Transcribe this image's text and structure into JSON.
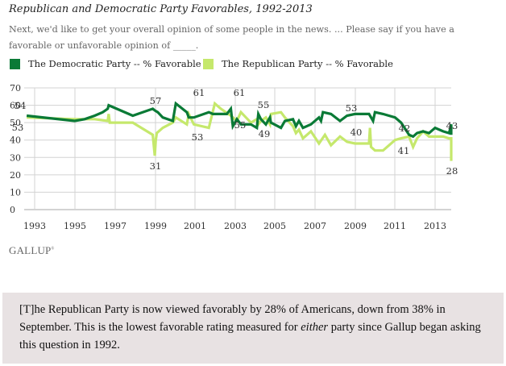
{
  "header": {
    "title": "Republican and Democratic Party Favorables, 1992-2013",
    "subtitle": "Next, we'd like to get your overall opinion of some people in the news. ... Please say if you have a favorable or unfavorable opinion of _____."
  },
  "source": "GALLUP",
  "quote": {
    "part1": "[T]he Republican Party is now viewed favorably by 28% of Americans, down from 38% in September. This is the lowest favorable rating measured for ",
    "emphasis": "either",
    "part2": " party since Gallup began asking this question in 1992."
  },
  "chart_data": {
    "type": "line",
    "title": "Republican and Democratic Party Favorables, 1992-2013",
    "xlabel": "",
    "ylabel": "",
    "xlim": [
      1992.6,
      2013.75
    ],
    "ylim": [
      0,
      70
    ],
    "xticks": [
      "1993",
      "1995",
      "1997",
      "1999",
      "2001",
      "2003",
      "2005",
      "2007",
      "2009",
      "2011",
      "2013"
    ],
    "yticks": [
      "0",
      "10",
      "20",
      "30",
      "40",
      "50",
      "60",
      "70"
    ],
    "grid": true,
    "legend_position": "top-left",
    "series": [
      {
        "name": "The Democratic Party -- % Favorable",
        "color": "#0a7a36",
        "points": [
          [
            1992.6,
            54
          ],
          [
            1995.0,
            51
          ],
          [
            1995.5,
            52
          ],
          [
            1996.0,
            54
          ],
          [
            1996.4,
            56
          ],
          [
            1996.65,
            58
          ],
          [
            1996.7,
            60
          ],
          [
            1997.9,
            54
          ],
          [
            1998.9,
            58
          ],
          [
            1999.0,
            57
          ],
          [
            1999.15,
            56
          ],
          [
            1999.4,
            53
          ],
          [
            1999.9,
            51
          ],
          [
            2000.05,
            61
          ],
          [
            2000.6,
            56
          ],
          [
            2000.7,
            53
          ],
          [
            2000.95,
            53
          ],
          [
            2001.7,
            56
          ],
          [
            2001.9,
            55
          ],
          [
            2002.6,
            55
          ],
          [
            2002.8,
            58
          ],
          [
            2002.9,
            48
          ],
          [
            2003.1,
            52
          ],
          [
            2003.3,
            49
          ],
          [
            2003.8,
            49
          ],
          [
            2004.1,
            47
          ],
          [
            2004.17,
            55
          ],
          [
            2004.3,
            52
          ],
          [
            2004.55,
            49
          ],
          [
            2004.75,
            53
          ],
          [
            2004.8,
            50
          ],
          [
            2005.3,
            47
          ],
          [
            2005.5,
            51
          ],
          [
            2005.9,
            52
          ],
          [
            2006.05,
            48
          ],
          [
            2006.2,
            51
          ],
          [
            2006.4,
            47
          ],
          [
            2006.8,
            49
          ],
          [
            2007.2,
            53
          ],
          [
            2007.3,
            51
          ],
          [
            2007.4,
            56
          ],
          [
            2007.8,
            55
          ],
          [
            2008.25,
            51
          ],
          [
            2008.6,
            54
          ],
          [
            2009.0,
            55
          ],
          [
            2009.7,
            55
          ],
          [
            2009.8,
            53
          ],
          [
            2009.9,
            51
          ],
          [
            2010.0,
            56
          ],
          [
            2010.4,
            55
          ],
          [
            2011.0,
            53
          ],
          [
            2011.3,
            50
          ],
          [
            2011.7,
            43
          ],
          [
            2011.9,
            42
          ],
          [
            2012.1,
            44
          ],
          [
            2012.4,
            45
          ],
          [
            2012.7,
            44
          ],
          [
            2013.0,
            47
          ],
          [
            2013.4,
            45
          ],
          [
            2013.7,
            44
          ],
          [
            2013.95,
            49
          ],
          [
            2014.2,
            48
          ],
          [
            2014.5,
            46
          ],
          [
            2014.7,
            43
          ]
        ]
      },
      {
        "name": "The Republican Party -- % Favorable",
        "color": "#c5e86c",
        "points": [
          [
            1992.6,
            53
          ],
          [
            1995.0,
            52
          ],
          [
            1996.0,
            52
          ],
          [
            1996.65,
            51
          ],
          [
            1996.7,
            55
          ],
          [
            1996.75,
            50
          ],
          [
            1997.9,
            50
          ],
          [
            1998.9,
            43
          ],
          [
            1999.0,
            31
          ],
          [
            1999.05,
            40
          ],
          [
            1999.1,
            44
          ],
          [
            1999.4,
            47
          ],
          [
            1999.9,
            50
          ],
          [
            2000.05,
            53
          ],
          [
            2000.6,
            49
          ],
          [
            2000.7,
            55
          ],
          [
            2000.95,
            49
          ],
          [
            2001.7,
            47
          ],
          [
            2002.0,
            61
          ],
          [
            2002.3,
            58
          ],
          [
            2002.8,
            54
          ],
          [
            2003.1,
            51
          ],
          [
            2003.3,
            56
          ],
          [
            2003.8,
            50
          ],
          [
            2004.1,
            52
          ],
          [
            2004.17,
            49
          ],
          [
            2004.3,
            51
          ],
          [
            2004.55,
            53
          ],
          [
            2004.75,
            49
          ],
          [
            2004.8,
            55
          ],
          [
            2005.3,
            56
          ],
          [
            2005.5,
            53
          ],
          [
            2005.9,
            48
          ],
          [
            2006.05,
            44
          ],
          [
            2006.2,
            46
          ],
          [
            2006.4,
            41
          ],
          [
            2006.8,
            45
          ],
          [
            2007.2,
            38
          ],
          [
            2007.5,
            43
          ],
          [
            2007.8,
            37
          ],
          [
            2008.25,
            42
          ],
          [
            2008.6,
            39
          ],
          [
            2009.0,
            38
          ],
          [
            2009.7,
            38
          ],
          [
            2009.75,
            47
          ],
          [
            2009.8,
            36
          ],
          [
            2010.0,
            34
          ],
          [
            2010.4,
            34
          ],
          [
            2011.0,
            40
          ],
          [
            2011.3,
            41
          ],
          [
            2011.7,
            42
          ],
          [
            2011.9,
            36
          ],
          [
            2012.1,
            41
          ],
          [
            2012.4,
            45
          ],
          [
            2012.7,
            42
          ],
          [
            2013.0,
            42
          ],
          [
            2013.4,
            42
          ],
          [
            2013.7,
            41
          ],
          [
            2014.0,
            41
          ],
          [
            2014.4,
            40
          ],
          [
            2014.6,
            38
          ],
          [
            2014.7,
            28
          ]
        ]
      }
    ],
    "annotations": [
      {
        "text": "54",
        "series": "Democratic"
      },
      {
        "text": "53",
        "series": "Republican"
      },
      {
        "text": "57",
        "series": "Democratic"
      },
      {
        "text": "31",
        "series": "Republican"
      },
      {
        "text": "61",
        "series": "Democratic"
      },
      {
        "text": "53",
        "series": "Republican"
      },
      {
        "text": "61",
        "series": "Republican"
      },
      {
        "text": "55",
        "series": "Republican"
      },
      {
        "text": "55",
        "series": "Democratic"
      },
      {
        "text": "49",
        "series": "Republican"
      },
      {
        "text": "53",
        "series": "Democratic"
      },
      {
        "text": "40",
        "series": "Republican"
      },
      {
        "text": "42",
        "series": "Democratic"
      },
      {
        "text": "41",
        "series": "Republican"
      },
      {
        "text": "43",
        "series": "Democratic"
      },
      {
        "text": "28",
        "series": "Republican"
      }
    ]
  }
}
